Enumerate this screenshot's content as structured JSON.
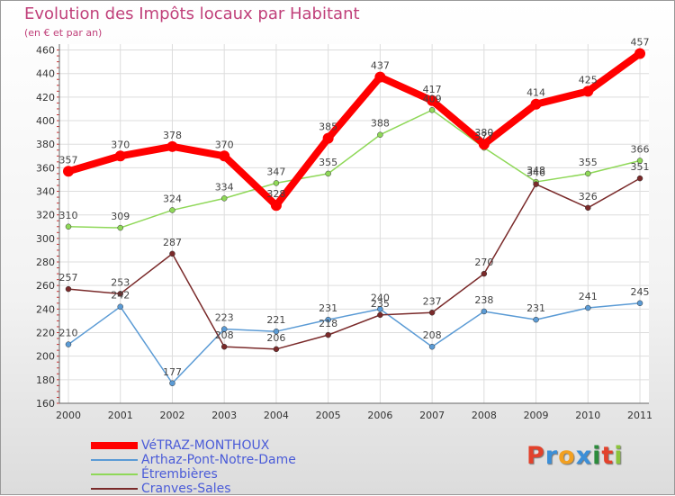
{
  "title": "Evolution des Impôts locaux par Habitant",
  "subtitle": "(en € et par an)",
  "logo_text": "Proxiti",
  "logo_colors": [
    "#e2422c",
    "#3c8fd8",
    "#f2a021",
    "#3c8fd8",
    "#2c8c3c",
    "#e2422c",
    "#8cc43c"
  ],
  "chart_data": {
    "type": "line",
    "title": "Evolution des Impôts locaux par Habitant",
    "subtitle": "(en € et par an)",
    "xlabel": "",
    "ylabel": "",
    "categories": [
      "2000",
      "2001",
      "2002",
      "2003",
      "2004",
      "2005",
      "2006",
      "2007",
      "2008",
      "2009",
      "2010",
      "2011"
    ],
    "ylim": [
      160,
      465
    ],
    "yticks": [
      160,
      180,
      200,
      220,
      240,
      260,
      280,
      300,
      320,
      340,
      360,
      380,
      400,
      420,
      440,
      460
    ],
    "ytick_labels": [
      "160",
      "180",
      "200",
      "220",
      "240",
      "260",
      "280",
      "300",
      "320",
      "340",
      "360",
      "380",
      "400",
      "420",
      "440",
      "460"
    ],
    "grid": true,
    "legend_position": "bottom-left",
    "series": [
      {
        "name": "VéTRAZ-MONTHOUX",
        "color": "#ff0000",
        "values": [
          357,
          370,
          378,
          370,
          328,
          385,
          437,
          417,
          380,
          414,
          425,
          457
        ],
        "labels": [
          "357",
          "370",
          "378",
          "370",
          "328",
          "385",
          "437",
          "417",
          "380",
          "414",
          "425",
          "457"
        ]
      },
      {
        "name": "Arthaz-Pont-Notre-Dame",
        "color": "#5b9bd5",
        "values": [
          210,
          242,
          177,
          223,
          221,
          231,
          240,
          208,
          238,
          231,
          241,
          245
        ],
        "labels": [
          "210",
          "242",
          "177",
          "223",
          "221",
          "231",
          "240",
          "208",
          "238",
          "231",
          "241",
          "245"
        ]
      },
      {
        "name": "Étrembières",
        "color": "#8fd858",
        "values": [
          310,
          309,
          324,
          334,
          347,
          355,
          388,
          409,
          377,
          348,
          355,
          366
        ],
        "labels": [
          "310",
          "309",
          "324",
          "334",
          "347",
          "355",
          "388",
          "409",
          "377",
          "348",
          "355",
          "366"
        ]
      },
      {
        "name": "Cranves-Sales",
        "color": "#7a2a2a",
        "values": [
          257,
          253,
          287,
          208,
          206,
          218,
          235,
          237,
          270,
          346,
          326,
          351
        ],
        "labels": [
          "257",
          "253",
          "287",
          "208",
          "206",
          "218",
          "235",
          "237",
          "270",
          "346",
          "326",
          "351"
        ]
      }
    ]
  }
}
